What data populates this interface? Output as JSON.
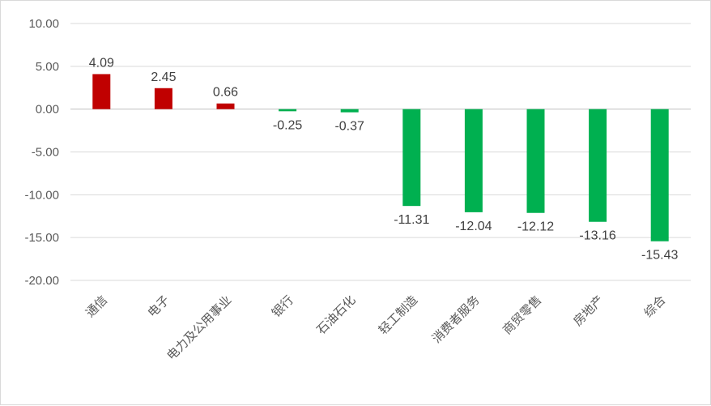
{
  "chart_data": {
    "type": "bar",
    "title": "",
    "xlabel": "",
    "ylabel": "",
    "ylim": [
      -20,
      10
    ],
    "yticks": [
      "10.00",
      "5.00",
      "0.00",
      "-5.00",
      "-10.00",
      "-15.00",
      "-20.00"
    ],
    "ytick_values": [
      10,
      5,
      0,
      -5,
      -10,
      -15,
      -20
    ],
    "grid": true,
    "legend": "none",
    "categories": [
      "通信",
      "电子",
      "电力及公用事业",
      "银行",
      "石油石化",
      "轻工制造",
      "消费者服务",
      "商贸零售",
      "房地产",
      "综合"
    ],
    "values": [
      4.09,
      2.45,
      0.66,
      -0.25,
      -0.37,
      -11.31,
      -12.04,
      -12.12,
      -13.16,
      -15.43
    ],
    "data_labels": [
      "4.09",
      "2.45",
      "0.66",
      "-0.25",
      "-0.37",
      "-11.31",
      "-12.04",
      "-12.12",
      "-13.16",
      "-15.43"
    ],
    "colors": {
      "positive": "#c00000",
      "negative": "#00b050"
    }
  }
}
